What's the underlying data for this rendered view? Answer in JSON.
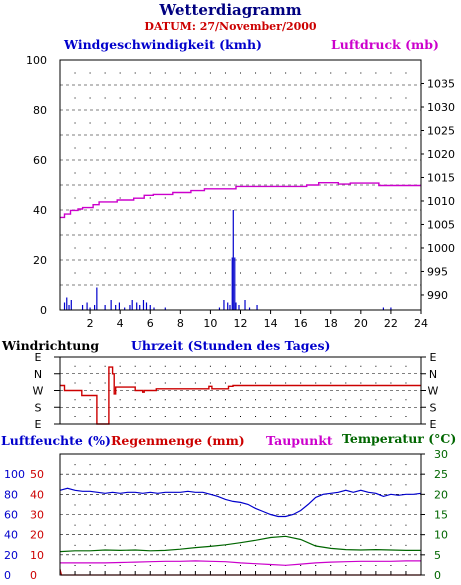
{
  "header": {
    "title": "Wetterdiagramm",
    "date_label": "DATUM: 27/November/2000"
  },
  "colors": {
    "title": "#000080",
    "date": "#cc0000",
    "wind": "#0000cc",
    "pressure": "#cc00cc",
    "direction": "#cc0000",
    "humidity": "#0000cc",
    "rain": "#cc0000",
    "dewpoint": "#cc00cc",
    "temperature": "#006600",
    "grid": "#000000"
  },
  "chart_data": [
    {
      "type": "line",
      "name": "wind-pressure",
      "title": "",
      "left_axis_label": "Windgeschwindigkeit (kmh)",
      "right_axis_label": "Luftdruck (mb)",
      "xlabel": "Uhrzeit (Stunden des Tages)",
      "xlim": [
        0,
        24
      ],
      "x_ticks": [
        2,
        4,
        6,
        8,
        10,
        12,
        14,
        16,
        18,
        20,
        22,
        24
      ],
      "left_ylim": [
        0,
        100
      ],
      "left_ticks": [
        0,
        20,
        40,
        60,
        80,
        100
      ],
      "right_ylim": [
        986.8,
        1040
      ],
      "right_ticks": [
        990,
        995,
        1000,
        1005,
        1010,
        1015,
        1020,
        1025,
        1030,
        1035
      ],
      "grid": true,
      "series": [
        {
          "name": "Windgeschwindigkeit (kmh)",
          "axis": "left",
          "style": "spikes",
          "points": [
            [
              0.3,
              3
            ],
            [
              0.45,
              5
            ],
            [
              0.6,
              2
            ],
            [
              0.75,
              4
            ],
            [
              1.5,
              2
            ],
            [
              1.8,
              3
            ],
            [
              2.0,
              1
            ],
            [
              2.3,
              2
            ],
            [
              2.45,
              9
            ],
            [
              3.0,
              2
            ],
            [
              3.4,
              4
            ],
            [
              3.7,
              2
            ],
            [
              3.95,
              3
            ],
            [
              4.3,
              1
            ],
            [
              4.65,
              2
            ],
            [
              4.8,
              4
            ],
            [
              5.1,
              3
            ],
            [
              5.3,
              2
            ],
            [
              5.55,
              4
            ],
            [
              5.75,
              3
            ],
            [
              6.0,
              2
            ],
            [
              6.25,
              1
            ],
            [
              7.0,
              1
            ],
            [
              10.6,
              1
            ],
            [
              10.9,
              4
            ],
            [
              11.15,
              3
            ],
            [
              11.3,
              2
            ],
            [
              11.45,
              21
            ],
            [
              11.52,
              40
            ],
            [
              11.62,
              21
            ],
            [
              11.7,
              3
            ],
            [
              11.9,
              2
            ],
            [
              12.3,
              4
            ],
            [
              12.6,
              1
            ],
            [
              13.1,
              2
            ],
            [
              21.5,
              1
            ],
            [
              22.0,
              1
            ]
          ]
        },
        {
          "name": "Luftdruck (mb)",
          "axis": "right",
          "style": "step",
          "points": [
            [
              0,
              1006.5
            ],
            [
              0.3,
              1007.2
            ],
            [
              0.7,
              1008.0
            ],
            [
              1.2,
              1008.3
            ],
            [
              1.5,
              1008.6
            ],
            [
              2.2,
              1009.2
            ],
            [
              2.6,
              1009.8
            ],
            [
              3.0,
              1009.8
            ],
            [
              3.8,
              1010.2
            ],
            [
              4.9,
              1010.6
            ],
            [
              5.6,
              1011.2
            ],
            [
              6.2,
              1011.4
            ],
            [
              7.5,
              1011.8
            ],
            [
              8.7,
              1012.2
            ],
            [
              9.6,
              1012.6
            ],
            [
              11.7,
              1013.1
            ],
            [
              13.8,
              1013.1
            ],
            [
              16.4,
              1013.4
            ],
            [
              17.2,
              1013.9
            ],
            [
              18.5,
              1013.6
            ],
            [
              19.3,
              1013.8
            ],
            [
              21.2,
              1013.3
            ],
            [
              24,
              1013.3
            ]
          ]
        }
      ]
    },
    {
      "type": "line",
      "name": "wind-direction",
      "title": "",
      "ylabel": "Windrichtung",
      "xlim": [
        0,
        24
      ],
      "y_categories": [
        "E",
        "S",
        "W",
        "N",
        "E"
      ],
      "grid": true,
      "series": [
        {
          "name": "Windrichtung",
          "style": "step",
          "points": [
            [
              0,
              2.3
            ],
            [
              0.3,
              2.0
            ],
            [
              1.3,
              2.0
            ],
            [
              1.45,
              1.7
            ],
            [
              2.3,
              1.7
            ],
            [
              2.45,
              0
            ],
            [
              3.2,
              0
            ],
            [
              3.25,
              3.4
            ],
            [
              3.45,
              3.4
            ],
            [
              3.5,
              3.0
            ],
            [
              3.6,
              1.8
            ],
            [
              3.7,
              2.2
            ],
            [
              4.9,
              2.2
            ],
            [
              5.0,
              2.0
            ],
            [
              5.4,
              2.0
            ],
            [
              5.5,
              1.9
            ],
            [
              5.6,
              2.0
            ],
            [
              6.3,
              2.0
            ],
            [
              6.4,
              2.1
            ],
            [
              9.6,
              2.1
            ],
            [
              9.9,
              2.25
            ],
            [
              10.1,
              2.1
            ],
            [
              11.0,
              2.1
            ],
            [
              11.2,
              2.25
            ],
            [
              11.5,
              2.3
            ],
            [
              24,
              2.3
            ]
          ]
        }
      ]
    },
    {
      "type": "line",
      "name": "humidity-rain-dewpoint-temperature",
      "title": "",
      "labels": {
        "humidity": "Luftfeuchte (%)",
        "rain": "Regenmenge (mm)",
        "dewpoint": "Taupunkt",
        "temperature": "Temperatur"
      },
      "temperature_unit": "(°C)",
      "xlim": [
        0,
        24
      ],
      "humidity_ticks": [
        0,
        20,
        40,
        60,
        80,
        100
      ],
      "rain_ticks": [
        0,
        10,
        20,
        30,
        40,
        50
      ],
      "temperature_ticks": [
        0,
        5,
        10,
        15,
        20,
        25,
        30
      ],
      "ylim_temperature": [
        0,
        30
      ],
      "grid": true,
      "series": [
        {
          "name": "Luftfeuchte (%)",
          "scale": "humidity",
          "ylim": [
            0,
            120
          ],
          "points": [
            [
              0,
              84
            ],
            [
              0.5,
              86
            ],
            [
              1,
              84
            ],
            [
              1.5,
              83
            ],
            [
              2,
              83
            ],
            [
              2.5,
              82
            ],
            [
              3,
              81
            ],
            [
              3.5,
              82
            ],
            [
              4,
              81
            ],
            [
              4.5,
              82
            ],
            [
              5,
              82
            ],
            [
              5.5,
              81
            ],
            [
              6,
              82
            ],
            [
              6.5,
              81
            ],
            [
              7,
              82
            ],
            [
              7.5,
              82
            ],
            [
              8,
              82
            ],
            [
              8.5,
              83
            ],
            [
              9,
              82
            ],
            [
              9.5,
              82
            ],
            [
              10,
              80
            ],
            [
              10.5,
              78
            ],
            [
              11,
              75
            ],
            [
              11.5,
              73
            ],
            [
              12,
              72
            ],
            [
              12.5,
              70
            ],
            [
              13,
              66
            ],
            [
              13.5,
              63
            ],
            [
              14,
              60
            ],
            [
              14.5,
              58
            ],
            [
              15,
              58
            ],
            [
              15.5,
              60
            ],
            [
              16,
              64
            ],
            [
              16.5,
              70
            ],
            [
              17,
              77
            ],
            [
              17.5,
              80
            ],
            [
              18,
              81
            ],
            [
              18.5,
              82
            ],
            [
              19,
              84
            ],
            [
              19.5,
              82
            ],
            [
              20,
              84
            ],
            [
              20.5,
              82
            ],
            [
              21,
              81
            ],
            [
              21.5,
              78
            ],
            [
              22,
              80
            ],
            [
              22.5,
              79
            ],
            [
              23,
              80
            ],
            [
              23.5,
              80
            ],
            [
              24,
              81
            ]
          ]
        },
        {
          "name": "Regenmenge (mm)",
          "scale": "rain",
          "ylim": [
            0,
            60
          ],
          "points": [
            [
              0,
              3
            ],
            [
              0.1,
              0
            ],
            [
              24,
              0
            ]
          ]
        },
        {
          "name": "Taupunkt",
          "scale": "temperature",
          "ylim": [
            0,
            30
          ],
          "points": [
            [
              0,
              3.0
            ],
            [
              1,
              3.0
            ],
            [
              2,
              3.0
            ],
            [
              3,
              3.0
            ],
            [
              4,
              3.1
            ],
            [
              5,
              3.2
            ],
            [
              6,
              3.3
            ],
            [
              7,
              3.4
            ],
            [
              8,
              3.4
            ],
            [
              9,
              3.5
            ],
            [
              10,
              3.4
            ],
            [
              11,
              3.3
            ],
            [
              12,
              3.0
            ],
            [
              13,
              2.8
            ],
            [
              14,
              2.6
            ],
            [
              15,
              2.4
            ],
            [
              16,
              2.7
            ],
            [
              17,
              3.0
            ],
            [
              18,
              3.2
            ],
            [
              19,
              3.3
            ],
            [
              20,
              3.4
            ],
            [
              21,
              3.4
            ],
            [
              22,
              3.4
            ],
            [
              23,
              3.5
            ],
            [
              24,
              3.5
            ]
          ]
        },
        {
          "name": "Temperatur",
          "scale": "temperature",
          "ylim": [
            0,
            30
          ],
          "points": [
            [
              0,
              5.8
            ],
            [
              1,
              6.0
            ],
            [
              2,
              6.0
            ],
            [
              3,
              6.2
            ],
            [
              4,
              6.1
            ],
            [
              5,
              6.2
            ],
            [
              6,
              6.0
            ],
            [
              7,
              6.1
            ],
            [
              8,
              6.4
            ],
            [
              9,
              6.8
            ],
            [
              10,
              7.1
            ],
            [
              11,
              7.5
            ],
            [
              12,
              8.0
            ],
            [
              13,
              8.6
            ],
            [
              14,
              9.3
            ],
            [
              15,
              9.6
            ],
            [
              16,
              8.8
            ],
            [
              17,
              7.2
            ],
            [
              18,
              6.6
            ],
            [
              19,
              6.3
            ],
            [
              20,
              6.2
            ],
            [
              21,
              6.3
            ],
            [
              22,
              6.2
            ],
            [
              23,
              6.1
            ],
            [
              24,
              6.1
            ]
          ]
        }
      ]
    }
  ]
}
